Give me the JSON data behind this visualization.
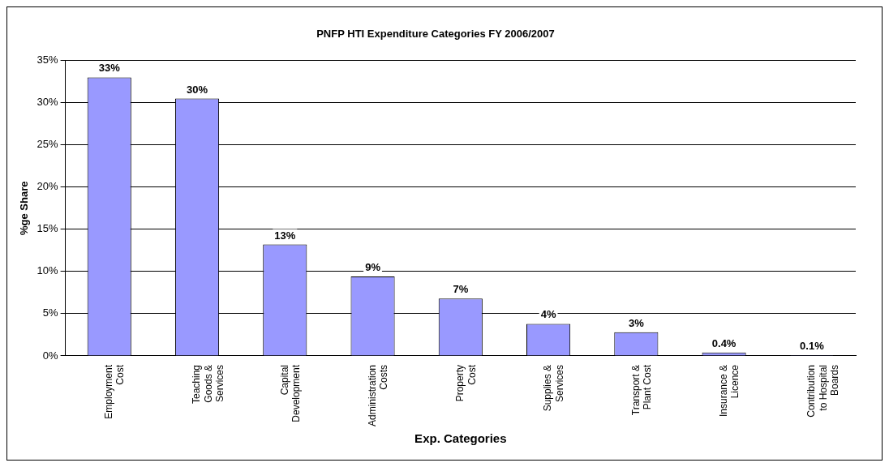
{
  "chart_data": {
    "type": "bar",
    "title": "PNFP HTI Expenditure Categories FY 2006/2007",
    "xlabel": "Exp. Categories",
    "ylabel": "%ge Share",
    "categories": [
      "Employment Cost",
      "Teaching Goods & Services",
      "Capital Development",
      "Administration Costs",
      "Property Cost",
      "Supplies & Services",
      "Transport & Plant Cost",
      "Insurance & Licence",
      "Contribution to Hospital Boards"
    ],
    "values": [
      33,
      30.5,
      13.2,
      9.4,
      6.8,
      3.8,
      2.8,
      0.4,
      0.1
    ],
    "value_labels": [
      "33%",
      "30%",
      "13%",
      "9%",
      "7%",
      "4%",
      "3%",
      "0.4%",
      "0.1%"
    ],
    "color": "#9999ff",
    "ylim": [
      0,
      35
    ],
    "yticks": [
      {
        "value": 0,
        "label": "0%"
      },
      {
        "value": 5,
        "label": "5%"
      },
      {
        "value": 10,
        "label": "10%"
      },
      {
        "value": 15,
        "label": "15%"
      },
      {
        "value": 20,
        "label": "20%"
      },
      {
        "value": 25,
        "label": "25%"
      },
      {
        "value": 30,
        "label": "30%"
      },
      {
        "value": 35,
        "label": "35%"
      }
    ],
    "grid": "y",
    "legend": false
  }
}
